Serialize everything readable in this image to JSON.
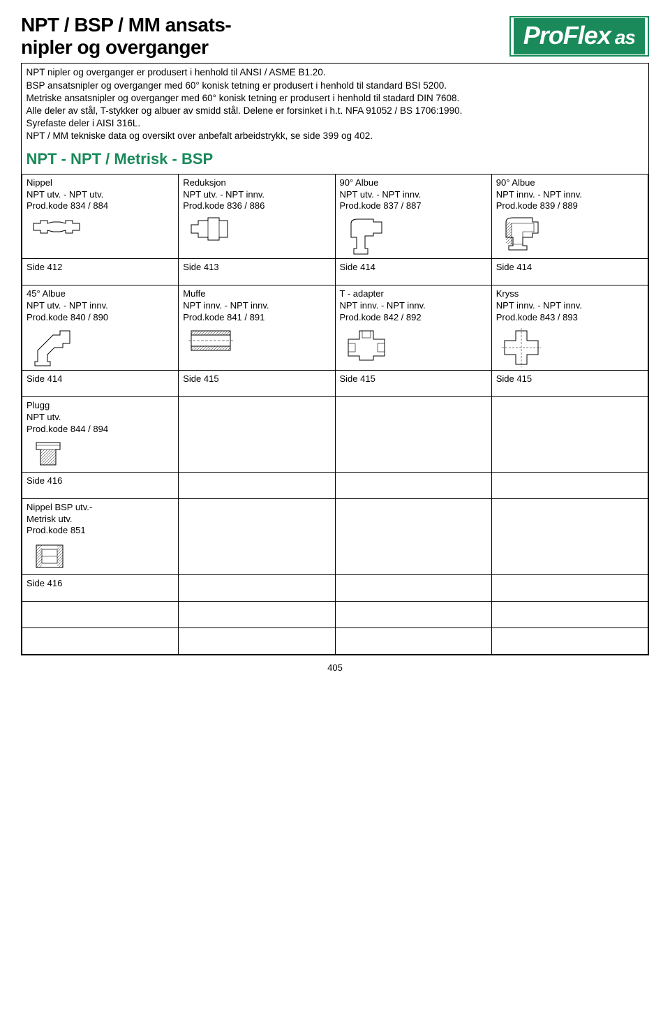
{
  "logo": {
    "text_main": "ProFlex",
    "text_suffix": "as",
    "bg_color": "#1a8a5a",
    "fg_color": "#ffffff"
  },
  "title": {
    "line1": "NPT / BSP / MM ansats-",
    "line2": "nipler og overganger"
  },
  "intro": "NPT nipler og overganger er produsert i henhold til ANSI / ASME B1.20.\nBSP ansatsnipler og overganger med 60° konisk tetning er produsert i henhold til standard BSI 5200.\nMetriske ansatsnipler og overganger med 60° konisk tetning er produsert i henhold til stadard DIN 7608.\nAlle deler av stål, T-stykker og albuer av smidd stål.  Delene er forsinket  i h.t. NFA 91052 / BS 1706:1990.\nSyrefaste deler i AISI 316L.\nNPT / MM tekniske data og oversikt over anbefalt arbeidstrykk, se side 399 og 402.",
  "subhead": "NPT - NPT / Metrisk - BSP",
  "products": [
    {
      "title": "Nippel",
      "sub1": "NPT utv. - NPT utv.",
      "sub2": "Prod.kode 834 / 884",
      "side": "Side 412",
      "icon": "nippel"
    },
    {
      "title": "Reduksjon",
      "sub1": "NPT utv. - NPT innv.",
      "sub2": "Prod.kode 836 / 886",
      "side": "Side 413",
      "icon": "reduksjon"
    },
    {
      "title": "90° Albue",
      "sub1": "NPT utv. - NPT innv.",
      "sub2": "Prod.kode 837 / 887",
      "side": "Side 414",
      "icon": "albue90ext"
    },
    {
      "title": "90° Albue",
      "sub1": "NPT innv. - NPT innv.",
      "sub2": "Prod.kode 839 / 889",
      "side": "Side 414",
      "icon": "albue90int"
    },
    {
      "title": "45° Albue",
      "sub1": "NPT utv. - NPT innv.",
      "sub2": "Prod.kode 840 / 890",
      "side": "Side 414",
      "icon": "albue45"
    },
    {
      "title": "Muffe",
      "sub1": "NPT innv. - NPT innv.",
      "sub2": "Prod.kode 841 / 891",
      "side": "Side 415",
      "icon": "muffe"
    },
    {
      "title": "T - adapter",
      "sub1": "NPT innv. - NPT innv.",
      "sub2": "Prod.kode 842 / 892",
      "side": "Side 415",
      "icon": "tee"
    },
    {
      "title": "Kryss",
      "sub1": "NPT innv. - NPT innv.",
      "sub2": "Prod.kode 843 / 893",
      "side": "Side 415",
      "icon": "kryss"
    },
    {
      "title": "Plugg",
      "sub1": "NPT utv.",
      "sub2": "Prod.kode 844 / 894",
      "side": "Side 416",
      "icon": "plugg"
    },
    {
      "title": "Nippel BSP utv.-",
      "sub1": "Metrisk utv.",
      "sub2": "Prod.kode 851",
      "side": "Side 416",
      "icon": "nippelbsp"
    }
  ],
  "page_number": "405",
  "colors": {
    "accent": "#1a8a5a",
    "border": "#000000",
    "text": "#000000"
  }
}
